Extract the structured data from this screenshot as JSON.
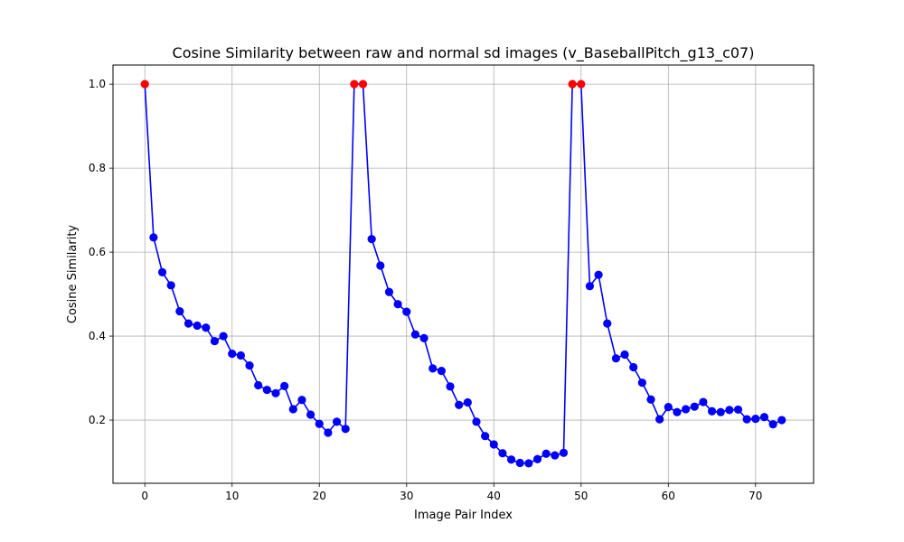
{
  "chart_data": {
    "type": "line",
    "title": "Cosine Similarity between raw and normal sd images (v_BaseballPitch_g13_c07)",
    "xlabel": "Image Pair Index",
    "ylabel": "Cosine Similarity",
    "xlim": [
      -3.65,
      76.65
    ],
    "ylim": [
      0.0495,
      1.0455
    ],
    "xticks": [
      0,
      10,
      20,
      30,
      40,
      50,
      60,
      70
    ],
    "yticks": [
      0.2,
      0.4,
      0.6,
      0.8,
      1.0
    ],
    "xtick_labels": [
      "0",
      "10",
      "20",
      "30",
      "40",
      "50",
      "60",
      "70"
    ],
    "ytick_labels": [
      "0.2",
      "0.4",
      "0.6",
      "0.8",
      "1.0"
    ],
    "grid": true,
    "line_color": "#0000ff",
    "marker_color": "#0000ff",
    "highlight_color": "#ff0000",
    "highlight_indices": [
      0,
      24,
      25,
      49,
      50
    ],
    "series": [
      {
        "name": "Cosine Similarity",
        "x": [
          0,
          1,
          2,
          3,
          4,
          5,
          6,
          7,
          8,
          9,
          10,
          11,
          12,
          13,
          14,
          15,
          16,
          17,
          18,
          19,
          20,
          21,
          22,
          23,
          24,
          25,
          26,
          27,
          28,
          29,
          30,
          31,
          32,
          33,
          34,
          35,
          36,
          37,
          38,
          39,
          40,
          41,
          42,
          43,
          44,
          45,
          46,
          47,
          48,
          49,
          50,
          51,
          52,
          53,
          54,
          55,
          56,
          57,
          58,
          59,
          60,
          61,
          62,
          63,
          64,
          65,
          66,
          67,
          68,
          69,
          70,
          71,
          72,
          73
        ],
        "values": [
          1.0,
          0.635,
          0.552,
          0.521,
          0.459,
          0.43,
          0.425,
          0.42,
          0.388,
          0.4,
          0.358,
          0.354,
          0.33,
          0.283,
          0.272,
          0.264,
          0.281,
          0.226,
          0.248,
          0.213,
          0.191,
          0.17,
          0.196,
          0.179,
          1.0,
          1.0,
          0.631,
          0.568,
          0.505,
          0.476,
          0.458,
          0.404,
          0.395,
          0.323,
          0.317,
          0.28,
          0.236,
          0.242,
          0.196,
          0.162,
          0.142,
          0.121,
          0.106,
          0.098,
          0.097,
          0.107,
          0.12,
          0.116,
          0.122,
          1.0,
          1.0,
          0.519,
          0.546,
          0.43,
          0.347,
          0.356,
          0.326,
          0.289,
          0.249,
          0.202,
          0.231,
          0.219,
          0.226,
          0.232,
          0.243,
          0.221,
          0.219,
          0.224,
          0.225,
          0.202,
          0.203,
          0.207,
          0.19,
          0.2
        ]
      }
    ]
  }
}
